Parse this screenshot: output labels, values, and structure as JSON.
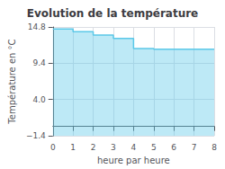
{
  "chart_data": {
    "type": "step",
    "title": "Evolution de la température",
    "xlabel": "heure par heure",
    "ylabel": "Température en °C",
    "x": [
      0,
      1,
      2,
      3,
      4,
      5,
      6,
      7,
      8
    ],
    "values": [
      14.5,
      14.1,
      13.6,
      13.1,
      11.6,
      11.5,
      11.5,
      11.5,
      11.5
    ],
    "color": "#5bc8e8",
    "xlim": [
      0,
      8
    ],
    "ylim": [
      -1.4,
      14.8
    ],
    "xticks": [
      0,
      1,
      2,
      3,
      4,
      5,
      6,
      7,
      8
    ],
    "yticks": [
      {
        "value": -1.4,
        "label": "−1.4"
      },
      {
        "value": 4.0,
        "label": "4.0"
      },
      9.4,
      14.8
    ],
    "grid": true
  }
}
